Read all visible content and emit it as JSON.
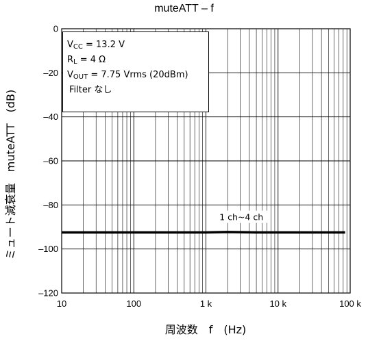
{
  "chart_data": {
    "type": "line",
    "title": "muteATT – f",
    "xlabel": "周波数　f　(Hz)",
    "ylabel": "ミュート減衰量　muteATT　(dB)",
    "xscale": "log",
    "xlim": [
      10,
      100000
    ],
    "ylim": [
      -120,
      0
    ],
    "x_ticks": [
      10,
      100,
      1000,
      10000,
      100000
    ],
    "x_tick_labels": [
      "10",
      "100",
      "1 k",
      "10 k",
      "100 k"
    ],
    "y_ticks": [
      0,
      -20,
      -40,
      -60,
      -80,
      -100,
      -120
    ],
    "y_tick_labels": [
      "0",
      "–20",
      "–40",
      "–60",
      "–80",
      "–100",
      "–120"
    ],
    "grid": true,
    "series": [
      {
        "name": "1 ch~4 ch",
        "x": [
          10,
          20,
          50,
          100,
          200,
          500,
          1000,
          2000,
          5000,
          10000,
          20000,
          50000,
          85000
        ],
        "y": [
          -92.5,
          -92.5,
          -92.5,
          -92.5,
          -92.5,
          -92.5,
          -92.5,
          -92.3,
          -92.5,
          -92.5,
          -92.5,
          -92.5,
          -92.5
        ]
      }
    ],
    "annotations": [
      {
        "text": "1 ch~4 ch",
        "x": 2000,
        "y": -86
      }
    ],
    "conditions": {
      "vcc_prefix": "V",
      "vcc_sub": "CC",
      "vcc_value": " = 13.2 V",
      "rl_prefix": "R",
      "rl_sub": "L",
      "rl_value": " = 4 Ω",
      "vout_prefix": "V",
      "vout_sub": "OUT",
      "vout_value": " = 7.75 Vrms (20dBm)",
      "filter": "Filter なし"
    },
    "colors": {
      "line": "#000000",
      "grid": "#000000"
    }
  }
}
